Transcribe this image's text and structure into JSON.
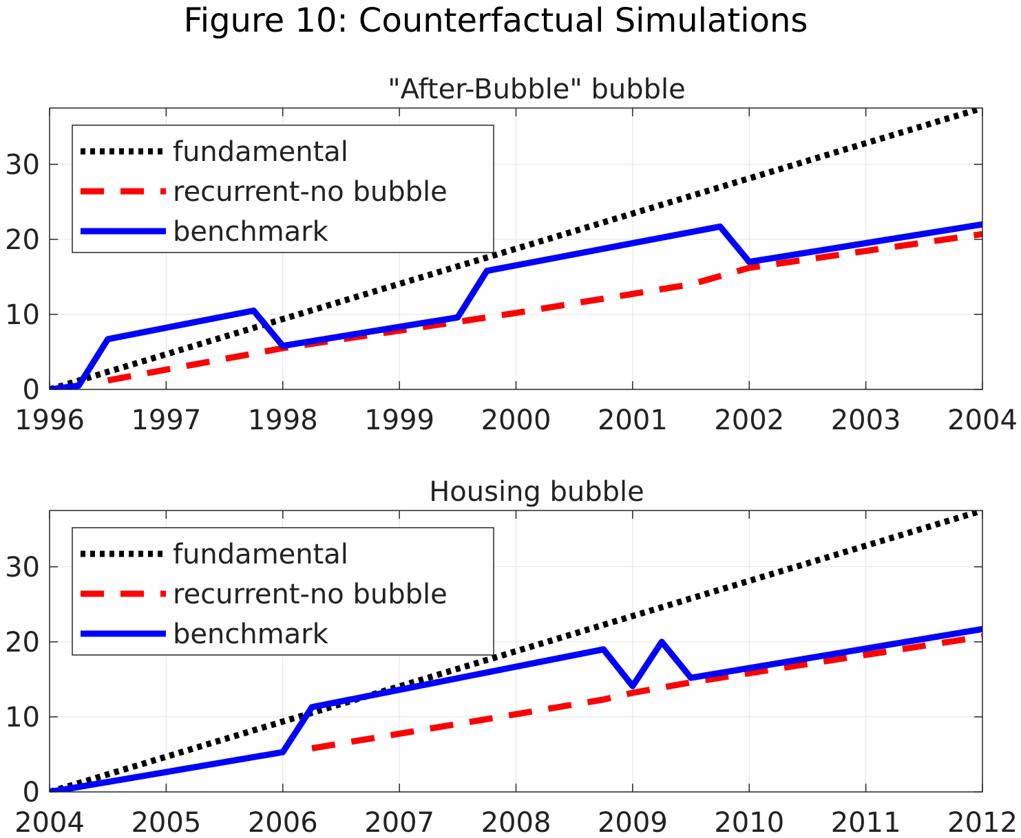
{
  "figure_title": "Figure 10: Counterfactual Simulations",
  "colors": {
    "fundamental": "#000000",
    "recurrent": "#ff0000",
    "benchmark": "#0000ff",
    "grid": "#e3e3e3",
    "axis": "#262626"
  },
  "chart_data": [
    {
      "type": "line",
      "title": "\"After-Bubble\" bubble",
      "xlabel": "",
      "ylabel": "",
      "xlim": [
        1996,
        2004
      ],
      "ylim": [
        0,
        37.5
      ],
      "xticks": [
        1996,
        1997,
        1998,
        1999,
        2000,
        2001,
        2002,
        2003,
        2004
      ],
      "yticks": [
        0,
        10,
        20,
        30
      ],
      "grid": true,
      "legend_position": "top-left",
      "series": [
        {
          "name": "fundamental",
          "style": "dotted",
          "color": "#000000",
          "x": [
            1996,
            2004
          ],
          "y": [
            0,
            37.5
          ]
        },
        {
          "name": "recurrent-no bubble",
          "style": "dashed",
          "color": "#ff0000",
          "x": [
            1996.5,
            1998,
            1999.5,
            2000,
            2001.5,
            2002,
            2004
          ],
          "y": [
            1.2,
            5.5,
            9.0,
            10.2,
            14.0,
            16.2,
            20.7
          ]
        },
        {
          "name": "benchmark",
          "style": "solid",
          "color": "#0000ff",
          "x": [
            1996,
            1996.25,
            1996.5,
            1997.75,
            1998,
            1999.5,
            1999.75,
            2001.75,
            2002,
            2004
          ],
          "y": [
            0,
            0.5,
            6.7,
            10.5,
            5.8,
            9.6,
            15.8,
            21.7,
            17.0,
            22.0
          ]
        }
      ]
    },
    {
      "type": "line",
      "title": "Housing bubble",
      "xlabel": "",
      "ylabel": "",
      "xlim": [
        2004,
        2012
      ],
      "ylim": [
        0,
        37.5
      ],
      "xticks": [
        2004,
        2005,
        2006,
        2007,
        2008,
        2009,
        2010,
        2011,
        2012
      ],
      "yticks": [
        0,
        10,
        20,
        30
      ],
      "grid": true,
      "legend_position": "top-left",
      "series": [
        {
          "name": "fundamental",
          "style": "dotted",
          "color": "#000000",
          "x": [
            2004,
            2012
          ],
          "y": [
            0,
            37.5
          ]
        },
        {
          "name": "recurrent-no bubble",
          "style": "dashed",
          "color": "#ff0000",
          "x": [
            2006.25,
            2008.75,
            2009,
            2009.5,
            2012
          ],
          "y": [
            5.8,
            12.3,
            13.2,
            14.6,
            20.7
          ]
        },
        {
          "name": "benchmark",
          "style": "solid",
          "color": "#0000ff",
          "x": [
            2004,
            2006,
            2006.25,
            2008.75,
            2009,
            2009.25,
            2009.5,
            2012
          ],
          "y": [
            0,
            5.3,
            11.3,
            19.0,
            14.1,
            20.0,
            15.2,
            21.7
          ]
        }
      ]
    }
  ]
}
